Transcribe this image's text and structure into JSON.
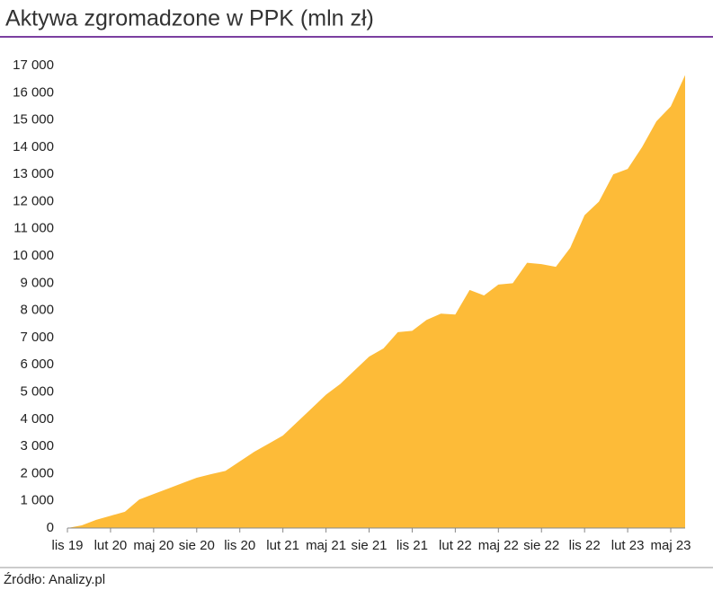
{
  "chart_data": {
    "type": "area",
    "title": "Aktywa zgromadzone w PPK (mln zł)",
    "source": "Źródło: Analizy.pl",
    "color": "#fdbb38",
    "categories": [
      "lis 19",
      null,
      null,
      "lut 20",
      null,
      null,
      "maj 20",
      null,
      null,
      "sie 20",
      null,
      null,
      "lis 20",
      null,
      null,
      "lut 21",
      null,
      null,
      "maj 21",
      null,
      null,
      "sie 21",
      null,
      null,
      "lis 21",
      null,
      null,
      "lut 22",
      null,
      null,
      "maj 22",
      null,
      null,
      "sie 22",
      null,
      null,
      "lis 22",
      null,
      null,
      "lut 23",
      null,
      null,
      "maj 23",
      null
    ],
    "values": [
      0,
      100,
      300,
      450,
      600,
      1050,
      1250,
      1450,
      1650,
      1850,
      1980,
      2100,
      2450,
      2800,
      3100,
      3400,
      3900,
      4400,
      4900,
      5300,
      5800,
      6300,
      6600,
      7200,
      7250,
      7650,
      7880,
      7850,
      8750,
      8550,
      8950,
      9000,
      9750,
      9700,
      9600,
      10300,
      11500,
      12000,
      13000,
      13200,
      14000,
      14950,
      15500,
      16650
    ],
    "ylim": [
      0,
      17000
    ],
    "yticks": [
      0,
      {
        "value": 1000,
        "label": "1 000"
      },
      {
        "value": 2000,
        "label": "2 000"
      },
      {
        "value": 3000,
        "label": "3 000"
      },
      {
        "value": 4000,
        "label": "4 000"
      },
      {
        "value": 5000,
        "label": "5 000"
      },
      {
        "value": 6000,
        "label": "6 000"
      },
      {
        "value": 7000,
        "label": "7 000"
      },
      {
        "value": 8000,
        "label": "8 000"
      },
      {
        "value": 9000,
        "label": "9 000"
      },
      {
        "value": 10000,
        "label": "10 000"
      },
      {
        "value": 11000,
        "label": "11 000"
      },
      {
        "value": 12000,
        "label": "12 000"
      },
      {
        "value": 13000,
        "label": "13 000"
      },
      {
        "value": 14000,
        "label": "14 000"
      },
      {
        "value": 15000,
        "label": "15 000"
      },
      {
        "value": 16000,
        "label": "16 000"
      },
      {
        "value": 17000,
        "label": "17 000"
      }
    ],
    "grid": false
  }
}
